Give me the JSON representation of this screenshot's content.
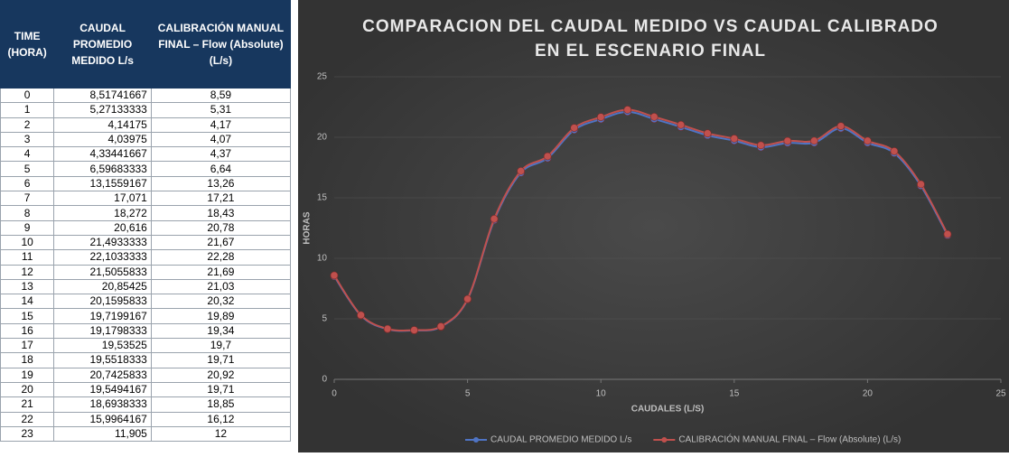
{
  "table": {
    "header": [
      "TIME (HORA)",
      "CAUDAL PROMEDIO MEDIDO L/s",
      "CALIBRACIÓN MANUAL FINAL – Flow (Absolute) (L/s)"
    ],
    "rows": [
      [
        "0",
        "8,51741667",
        "8,59"
      ],
      [
        "1",
        "5,27133333",
        "5,31"
      ],
      [
        "2",
        "4,14175",
        "4,17"
      ],
      [
        "3",
        "4,03975",
        "4,07"
      ],
      [
        "4",
        "4,33441667",
        "4,37"
      ],
      [
        "5",
        "6,59683333",
        "6,64"
      ],
      [
        "6",
        "13,1559167",
        "13,26"
      ],
      [
        "7",
        "17,071",
        "17,21"
      ],
      [
        "8",
        "18,272",
        "18,43"
      ],
      [
        "9",
        "20,616",
        "20,78"
      ],
      [
        "10",
        "21,4933333",
        "21,67"
      ],
      [
        "11",
        "22,1033333",
        "22,28"
      ],
      [
        "12",
        "21,5055833",
        "21,69"
      ],
      [
        "13",
        "20,85425",
        "21,03"
      ],
      [
        "14",
        "20,1595833",
        "20,32"
      ],
      [
        "15",
        "19,7199167",
        "19,89"
      ],
      [
        "16",
        "19,1798333",
        "19,34"
      ],
      [
        "17",
        "19,53525",
        "19,7"
      ],
      [
        "18",
        "19,5518333",
        "19,71"
      ],
      [
        "19",
        "20,7425833",
        "20,92"
      ],
      [
        "20",
        "19,5494167",
        "19,71"
      ],
      [
        "21",
        "18,6938333",
        "18,85"
      ],
      [
        "22",
        "15,9964167",
        "16,12"
      ],
      [
        "23",
        "11,905",
        "12"
      ]
    ]
  },
  "chart_data": {
    "type": "line",
    "title": "COMPARACION DEL CAUDAL MEDIDO VS CAUDAL CALIBRADO EN EL ESCENARIO FINAL",
    "x_label": "CAUDALES (L/S)",
    "y_label": "HORAS",
    "x": [
      0,
      1,
      2,
      3,
      4,
      5,
      6,
      7,
      8,
      9,
      10,
      11,
      12,
      13,
      14,
      15,
      16,
      17,
      18,
      19,
      20,
      21,
      22,
      23
    ],
    "series": [
      {
        "name": "CAUDAL PROMEDIO MEDIDO L/s",
        "color": "#4f74c4",
        "values": [
          8.51741667,
          5.27133333,
          4.14175,
          4.03975,
          4.33441667,
          6.59683333,
          13.1559167,
          17.071,
          18.272,
          20.616,
          21.4933333,
          22.1033333,
          21.5055833,
          20.85425,
          20.1595833,
          19.7199167,
          19.1798333,
          19.53525,
          19.5518333,
          20.7425833,
          19.5494167,
          18.6938333,
          15.9964167,
          11.905
        ]
      },
      {
        "name": "CALIBRACIÓN MANUAL FINAL – Flow (Absolute) (L/s)",
        "color": "#c0504d",
        "values": [
          8.59,
          5.31,
          4.17,
          4.07,
          4.37,
          6.64,
          13.26,
          17.21,
          18.43,
          20.78,
          21.67,
          22.28,
          21.69,
          21.03,
          20.32,
          19.89,
          19.34,
          19.7,
          19.71,
          20.92,
          19.71,
          18.85,
          16.12,
          12
        ]
      }
    ],
    "xlim": [
      0,
      25
    ],
    "xticks": [
      0,
      5,
      10,
      15,
      20,
      25
    ],
    "ylim": [
      0,
      25
    ],
    "yticks": [
      0,
      5,
      10,
      15,
      20,
      25
    ],
    "legend": "bottom"
  }
}
